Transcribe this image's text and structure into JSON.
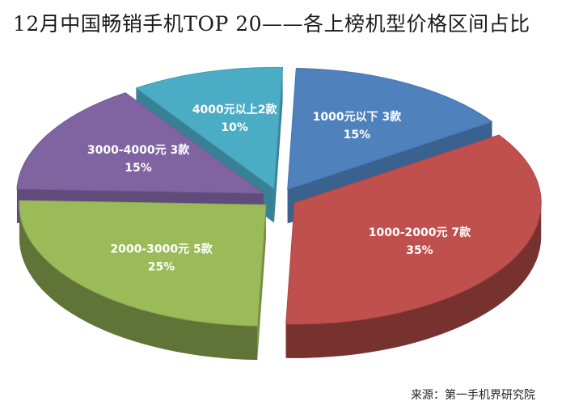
{
  "title": "12月中国畅销手机TOP 20——各上榜机型价格区间占比",
  "source": "来源：第一手机界研究院",
  "chart_data": {
    "type": "pie",
    "title": "12月中国畅销手机TOP 20——各上榜机型价格区间占比",
    "style": "3d-exploded",
    "slices": [
      {
        "label": "1000元以下 3款",
        "percent_label": "15%",
        "value": 15,
        "color": "#4f81bd"
      },
      {
        "label": "1000-2000元 7款",
        "percent_label": "35%",
        "value": 35,
        "color": "#c0504d"
      },
      {
        "label": "2000-3000元 5款",
        "percent_label": "25%",
        "value": 25,
        "color": "#9bbb59"
      },
      {
        "label": "3000-4000元 3款",
        "percent_label": "15%",
        "value": 15,
        "color": "#8064a2"
      },
      {
        "label": "4000元以上2款",
        "percent_label": "10%",
        "value": 10,
        "color": "#4bacc6"
      }
    ]
  }
}
